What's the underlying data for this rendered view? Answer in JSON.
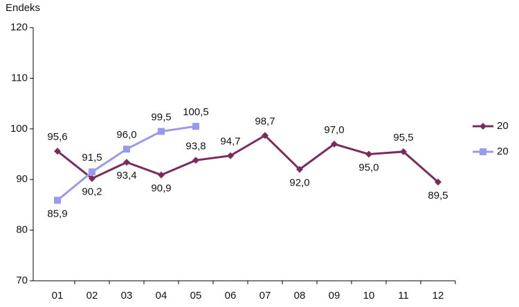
{
  "chart_data": {
    "type": "line",
    "y_label": "Endeks",
    "categories": [
      "01",
      "02",
      "03",
      "04",
      "05",
      "06",
      "07",
      "08",
      "09",
      "10",
      "11",
      "12"
    ],
    "series": [
      {
        "name": "20",
        "color": "#7b2b5a",
        "marker": "diamond",
        "values": [
          95.6,
          90.2,
          93.4,
          90.9,
          93.8,
          94.7,
          98.7,
          92.0,
          97.0,
          95.0,
          95.5,
          89.5
        ],
        "value_labels": [
          "95,6",
          "90,2",
          "93,4",
          "90,9",
          "93,8",
          "94,7",
          "98,7",
          "92,0",
          "97,0",
          "95,0",
          "95,5",
          "89,5"
        ]
      },
      {
        "name": "20",
        "color": "#9999ee",
        "marker": "square",
        "values": [
          85.9,
          91.5,
          96.0,
          99.5,
          100.5,
          null,
          null,
          null,
          null,
          null,
          null,
          null
        ],
        "value_labels": [
          "85,9",
          "91,5",
          "96,0",
          "99,5",
          "100,5",
          null,
          null,
          null,
          null,
          null,
          null,
          null
        ]
      }
    ],
    "ylim": [
      70,
      120
    ],
    "yticks": [
      70,
      80,
      90,
      100,
      110,
      120
    ],
    "grid": false,
    "legend": "right"
  }
}
